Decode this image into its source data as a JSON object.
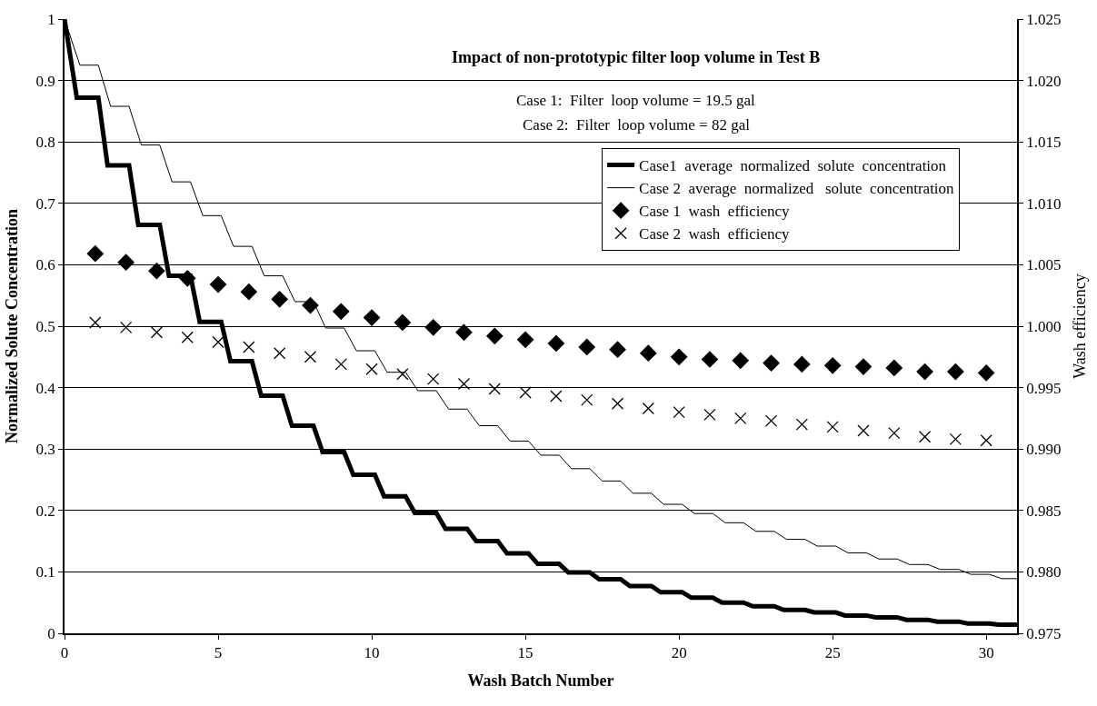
{
  "chart_data": {
    "type": "line",
    "title": "Impact of non-prototypic filter loop volume in Test B",
    "xlabel": "Wash Batch Number",
    "ylabel": "Normalized Solute Concentration",
    "y2label": "Wash efficiency",
    "annotations": [
      "Case 1:  Filter  loop volume = 19.5 gal",
      "Case 2:  Filter  loop volume = 82 gal"
    ],
    "xlim": [
      0,
      31
    ],
    "xticks": [
      0,
      5,
      10,
      15,
      20,
      25,
      30
    ],
    "ylim": [
      0,
      1
    ],
    "yticks": [
      0,
      0.1,
      0.2,
      0.3,
      0.4,
      0.5,
      0.6,
      0.7,
      0.8,
      0.9,
      1
    ],
    "y2lim": [
      0.975,
      1.025
    ],
    "y2ticks": [
      {
        "value": 0.975,
        "label": "0.975"
      },
      {
        "value": 0.98,
        "label": "0.980"
      },
      {
        "value": 0.985,
        "label": "0.985"
      },
      {
        "value": 0.99,
        "label": "0.990"
      },
      {
        "value": 0.995,
        "label": "0.995"
      },
      {
        "value": 1.0,
        "label": "1.000"
      },
      {
        "value": 1.005,
        "label": "1.005"
      },
      {
        "value": 1.01,
        "label": "1.010"
      },
      {
        "value": 1.015,
        "label": "1.015"
      },
      {
        "value": 1.02,
        "label": "1.020"
      },
      {
        "value": 1.025,
        "label": "1.025"
      }
    ],
    "grid": "y",
    "legend": "top right",
    "series": [
      {
        "name": "Case1  average  normalized  solute  concentration",
        "marker": "none",
        "line_style": "solid",
        "color": "#000000",
        "x": [
          0,
          0.4,
          1.1,
          1.4,
          2.1,
          2.4,
          3.1,
          3.4,
          4.1,
          4.4,
          5.1,
          5.4,
          6.1,
          6.4,
          7.1,
          7.4,
          8.1,
          8.4,
          9.1,
          9.4,
          10.1,
          10.4,
          11.1,
          11.4,
          12.1,
          12.4,
          13.1,
          13.4,
          14.1,
          14.4,
          15.1,
          15.4,
          16.1,
          16.4,
          17.1,
          17.4,
          18.1,
          18.4,
          19.1,
          19.4,
          20.1,
          20.4,
          21.1,
          21.4,
          22.1,
          22.4,
          23.1,
          23.4,
          24.1,
          24.4,
          25.1,
          25.4,
          26.1,
          26.4,
          27.1,
          27.4,
          28.1,
          28.4,
          29.1,
          29.4,
          30.1,
          30.4,
          31
        ],
        "values": [
          1,
          0.872,
          0.872,
          0.762,
          0.762,
          0.665,
          0.665,
          0.582,
          0.582,
          0.507,
          0.507,
          0.443,
          0.443,
          0.387,
          0.387,
          0.338,
          0.338,
          0.295,
          0.295,
          0.258,
          0.258,
          0.223,
          0.223,
          0.196,
          0.196,
          0.17,
          0.17,
          0.15,
          0.15,
          0.13,
          0.13,
          0.113,
          0.113,
          0.099,
          0.099,
          0.088,
          0.088,
          0.077,
          0.077,
          0.067,
          0.067,
          0.058,
          0.058,
          0.05,
          0.05,
          0.044,
          0.044,
          0.038,
          0.038,
          0.034,
          0.034,
          0.029,
          0.029,
          0.026,
          0.026,
          0.022,
          0.022,
          0.019,
          0.019,
          0.016,
          0.016,
          0.014,
          0.014
        ]
      },
      {
        "name": "Case 2  average  normalized   solute  concentration",
        "marker": "none",
        "line_style": "solid",
        "color": "#000000",
        "x": [
          0,
          0.5,
          1.1,
          1.5,
          2.1,
          2.5,
          3.1,
          3.5,
          4.1,
          4.5,
          5.1,
          5.5,
          6.1,
          6.5,
          7.1,
          7.5,
          8.1,
          8.5,
          9.1,
          9.5,
          10.1,
          10.5,
          11.1,
          11.5,
          12.1,
          12.5,
          13.1,
          13.5,
          14.1,
          14.5,
          15.1,
          15.5,
          16.1,
          16.5,
          17.1,
          17.5,
          18.1,
          18.5,
          19.1,
          19.5,
          20.1,
          20.5,
          21.1,
          21.5,
          22.1,
          22.5,
          23.1,
          23.5,
          24.1,
          24.5,
          25.1,
          25.5,
          26.1,
          26.5,
          27.1,
          27.5,
          28.1,
          28.5,
          29.1,
          29.5,
          30.1,
          30.5,
          31
        ],
        "values": [
          1,
          0.925,
          0.925,
          0.858,
          0.858,
          0.795,
          0.795,
          0.735,
          0.735,
          0.68,
          0.68,
          0.63,
          0.63,
          0.582,
          0.582,
          0.54,
          0.54,
          0.497,
          0.497,
          0.46,
          0.46,
          0.425,
          0.425,
          0.395,
          0.395,
          0.365,
          0.365,
          0.338,
          0.338,
          0.313,
          0.313,
          0.29,
          0.29,
          0.268,
          0.268,
          0.248,
          0.248,
          0.228,
          0.228,
          0.21,
          0.21,
          0.195,
          0.195,
          0.18,
          0.18,
          0.166,
          0.166,
          0.153,
          0.153,
          0.142,
          0.142,
          0.131,
          0.131,
          0.121,
          0.121,
          0.112,
          0.112,
          0.104,
          0.104,
          0.096,
          0.096,
          0.089,
          0.089
        ]
      },
      {
        "name": "Case 1  wash  efficiency",
        "type": "scatter",
        "marker": "diamond",
        "axis": "y2",
        "color": "#000000",
        "x": [
          1,
          2,
          3,
          4,
          5,
          6,
          7,
          8,
          9,
          10,
          11,
          12,
          13,
          14,
          15,
          16,
          17,
          18,
          19,
          20,
          21,
          22,
          23,
          24,
          25,
          26,
          27,
          28,
          29,
          30
        ],
        "values": [
          1.0059,
          1.0052,
          1.0045,
          1.0039,
          1.0034,
          1.0028,
          1.0022,
          1.0017,
          1.0012,
          1.0007,
          1.0003,
          0.9999,
          0.9995,
          0.9992,
          0.9989,
          0.9986,
          0.9983,
          0.9981,
          0.9978,
          0.9975,
          0.9973,
          0.9972,
          0.997,
          0.9969,
          0.9968,
          0.9967,
          0.9966,
          0.9963,
          0.9963,
          0.9962
        ]
      },
      {
        "name": "Case 2  wash  efficiency",
        "type": "scatter",
        "marker": "cross",
        "axis": "y2",
        "color": "#000000",
        "x": [
          1,
          2,
          3,
          4,
          5,
          6,
          7,
          8,
          9,
          10,
          11,
          12,
          13,
          14,
          15,
          16,
          17,
          18,
          19,
          20,
          21,
          22,
          23,
          24,
          25,
          26,
          27,
          28,
          29,
          30
        ],
        "values": [
          1.0003,
          0.9999,
          0.9995,
          0.9991,
          0.9987,
          0.9983,
          0.9978,
          0.9975,
          0.9969,
          0.9965,
          0.9961,
          0.9957,
          0.9953,
          0.9949,
          0.9946,
          0.9943,
          0.994,
          0.9937,
          0.9933,
          0.993,
          0.9928,
          0.9925,
          0.9923,
          0.992,
          0.9918,
          0.9915,
          0.9913,
          0.991,
          0.9908,
          0.9907
        ]
      }
    ]
  }
}
